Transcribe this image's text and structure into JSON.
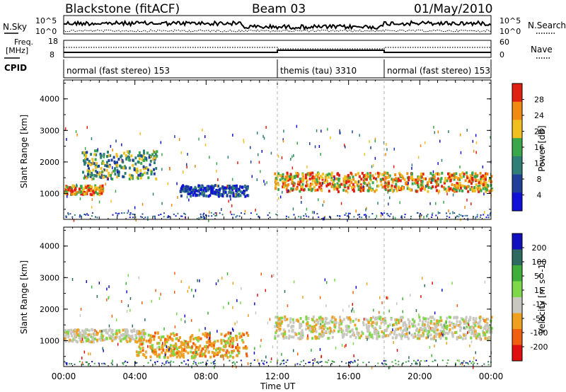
{
  "header": {
    "station": "Blackstone (fitACF)",
    "beam": "Beam 03",
    "date": "01/May/2010"
  },
  "noise_panel": {
    "left_label": "N.Sky",
    "right_label": "N.Search",
    "tick_top": "10^5",
    "tick_bottom": "10^0"
  },
  "freq_panel": {
    "label_line1": "Freq.",
    "label_line2": "[MHz]",
    "tick_top": "18",
    "tick_bottom": "8",
    "right_label": "Nave",
    "right_tick_top": "60",
    "right_tick_bottom": "0"
  },
  "cpid_panel": {
    "label": "CPID",
    "segments": [
      {
        "start_hour": 0,
        "end_hour": 12,
        "text": "normal (fast stereo) 153"
      },
      {
        "start_hour": 12,
        "end_hour": 18,
        "text": "themis (tau) 3310"
      },
      {
        "start_hour": 18,
        "end_hour": 24,
        "text": "normal (fast stereo) 153"
      }
    ]
  },
  "x_axis": {
    "label": "Time UT",
    "ticks": [
      "00:00",
      "04:00",
      "08:00",
      "12:00",
      "16:00",
      "20:00",
      "00:00"
    ],
    "range_hours": [
      0,
      24
    ]
  },
  "chart_data": [
    {
      "type": "heatmap",
      "name": "power",
      "ylabel": "Slant Range [km]",
      "ylim": [
        180,
        4600
      ],
      "yticks": [
        1000,
        2000,
        3000,
        4000
      ],
      "colorbar": {
        "label": "Power [dB]",
        "ticks": [
          "4",
          "8",
          "12",
          "16",
          "20",
          "24",
          "28"
        ],
        "colors": [
          "#1010d8",
          "#1f3f9a",
          "#2f7f78",
          "#3aa84a",
          "#f0c020",
          "#f08a10",
          "#e02010"
        ]
      },
      "features": [
        {
          "desc": "band",
          "t0": 0,
          "t1": 2.2,
          "r0": 1000,
          "r1": 1300,
          "level": "high"
        },
        {
          "desc": "rising arc",
          "t0": 1.0,
          "t1": 5.2,
          "r0": 1500,
          "r1": 2400,
          "level": "mid"
        },
        {
          "desc": "band",
          "t0": 6.5,
          "t1": 10.3,
          "r0": 950,
          "r1": 1300,
          "level": "low"
        },
        {
          "desc": "band",
          "t0": 11.8,
          "t1": 24,
          "r0": 1100,
          "r1": 1700,
          "level": "high"
        }
      ]
    },
    {
      "type": "heatmap",
      "name": "velocity",
      "ylabel": "Slant Range [km]",
      "ylim": [
        180,
        4600
      ],
      "yticks": [
        1000,
        2000,
        3000,
        4000
      ],
      "colorbar": {
        "label": "Velocity [m s^-1]",
        "ticks": [
          "200",
          "100",
          "50",
          "15",
          "-15",
          "-50",
          "-100",
          "-200"
        ],
        "colors": [
          "#1010c0",
          "#2f6a60",
          "#3fae3a",
          "#7ed84a",
          "#c8c8c0",
          "#f0a020",
          "#f06010",
          "#e01010"
        ]
      },
      "features": [
        {
          "desc": "band",
          "t0": 0,
          "t1": 4.5,
          "r0": 1000,
          "r1": 1400,
          "level": "grey"
        },
        {
          "desc": "band",
          "t0": 4.0,
          "t1": 10.3,
          "r0": 500,
          "r1": 1300,
          "level": "orange"
        },
        {
          "desc": "band",
          "t0": 11.8,
          "t1": 24,
          "r0": 1100,
          "r1": 1800,
          "level": "grey"
        }
      ]
    }
  ]
}
